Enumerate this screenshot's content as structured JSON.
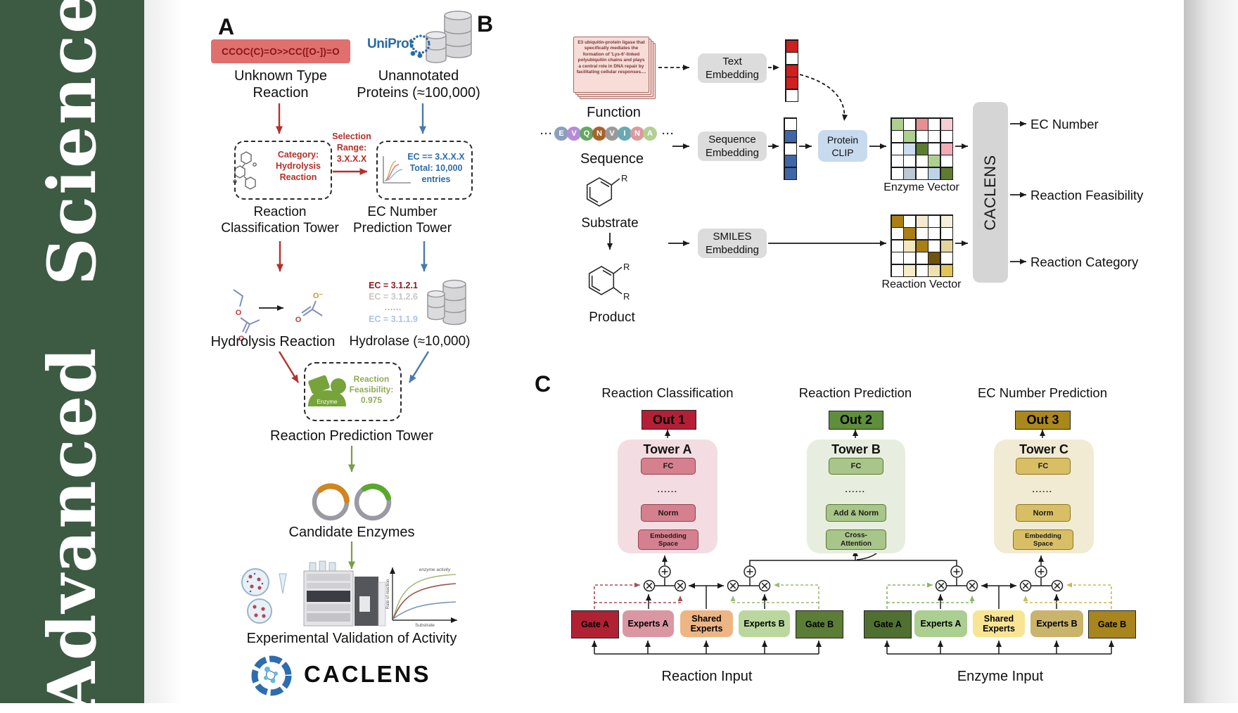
{
  "journal": {
    "title": "Advanced Science"
  },
  "colors": {
    "banner_green": "#3d5a43",
    "smiles_red": "#e0706d",
    "uniprot_blue": "#2a6aa4",
    "protein_clip_blue": "#c7daee",
    "tower_a_accent": "#b51f35",
    "tower_b_accent": "#5f8f3c",
    "tower_c_accent": "#ab881c"
  },
  "panelA": {
    "label": "A",
    "smiles": "CCOC(C)=O>>CC([O-])=O",
    "unknown_l1": "Unknown Type",
    "unknown_l2": "Reaction",
    "uniprot": "UniProt",
    "unannotated_l1": "Unannotated",
    "unannotated_l2": "Proteins (≈100,000)",
    "category_l1": "Category:",
    "category_l2": "Hydrolysis",
    "category_l3": "Reaction",
    "selection_l1": "Selection",
    "selection_l2": "Range:",
    "selection_l3": "3.X.X.X",
    "ecbox_l1": "EC == 3.X.X.X",
    "ecbox_l2": "Total: 10,000",
    "ecbox_l3": "entries",
    "tower1_l1": "Reaction",
    "tower1_l2": "Classification Tower",
    "tower2_l1": "EC Number",
    "tower2_l2": "Prediction Tower",
    "hydrolysis_label": "Hydrolysis Reaction",
    "ec_list": [
      "EC = 3.1.2.1",
      "EC = 3.1.2.6",
      "......",
      "EC = 3.1.1.9"
    ],
    "hydrolase_label": "Hydrolase (≈10,000)",
    "enzyme_badge": "Enzyme",
    "feas_l1": "Reaction",
    "feas_l2": "Feasibility:",
    "feas_l3": "0.975",
    "tower3_label": "Reaction Prediction Tower",
    "candidates_label": "Candidate Enzymes",
    "validation_label": "Experimental Validation of Activity",
    "brand": "CACLENS",
    "graph": {
      "annotation": "enzyme activity",
      "ylabel": "Rate of reaction",
      "xlabel": "Substrate"
    },
    "atoms": {
      "o": "O",
      "o_minus": "O⁻"
    }
  },
  "panelB": {
    "label": "B",
    "function_text": "E3 ubiquitin-protein ligase that specifically mediates the formation of 'Lys-6'-linked polyubiquitin chains and plays a central role in DNA repair by facilitating cellular responses....",
    "function_label": "Function",
    "seq_dots": "···",
    "sequence": [
      {
        "letter": "E",
        "color": "#8aa0bc"
      },
      {
        "letter": "V",
        "color": "#b48cd8"
      },
      {
        "letter": "Q",
        "color": "#62a862"
      },
      {
        "letter": "N",
        "color": "#a8622a"
      },
      {
        "letter": "V",
        "color": "#9a9a9a"
      },
      {
        "letter": "I",
        "color": "#6aa8b4"
      },
      {
        "letter": "N",
        "color": "#dc9aa0"
      },
      {
        "letter": "A",
        "color": "#b2cf96"
      }
    ],
    "sequence_label": "Sequence",
    "substrate_label": "Substrate",
    "product_label": "Product",
    "r_label": "R",
    "text_embedding_l1": "Text",
    "text_embedding_l2": "Embedding",
    "sequence_embedding_l1": "Sequence",
    "sequence_embedding_l2": "Embedding",
    "smiles_embedding_l1": "SMILES",
    "smiles_embedding_l2": "Embedding",
    "protein_clip_l1": "Protein",
    "protein_clip_l2": "CLIP",
    "text_vector": [
      "#d01f1f",
      "#ffffff",
      "#d01f1f",
      "#d01f1f",
      "#ffffff"
    ],
    "seq_vector": [
      "#ffffff",
      "#3f66a8",
      "#ffffff",
      "#3f66a8",
      "#3f66a8"
    ],
    "enzyme_grid": [
      [
        "#aed08e",
        "#ffffff",
        "#e89090",
        "#ffffff",
        "#f6cdd2"
      ],
      [
        "#ffffff",
        "#aed08e",
        "#ffffff",
        "#ffffff",
        "#ffffff"
      ],
      [
        "#ffffff",
        "#cddcee",
        "#5d7c31",
        "#ffffff",
        "#f2abb4"
      ],
      [
        "#ffffff",
        "#ffffff",
        "#ffffff",
        "#aed08e",
        "#ffffff"
      ],
      [
        "#ffffff",
        "#bcc8d2",
        "#ffffff",
        "#bed3ea",
        "#5d7c31"
      ]
    ],
    "reaction_grid": [
      [
        "#ab7f15",
        "#ffffff",
        "#f3ead0",
        "#ffffff",
        "#f7f0d8"
      ],
      [
        "#ffffff",
        "#ab7f15",
        "#ffffff",
        "#ffffff",
        "#ffffff"
      ],
      [
        "#ffffff",
        "#f3e7c0",
        "#ab7f15",
        "#ffffff",
        "#e3d49e"
      ],
      [
        "#ffffff",
        "#ffffff",
        "#ffffff",
        "#6f5410",
        "#ffffff"
      ],
      [
        "#ffffff",
        "#f5ecc8",
        "#ffffff",
        "#f0e2b0",
        "#e0c45a"
      ]
    ],
    "enzyme_vector_label": "Enzyme Vector",
    "reaction_vector_label": "Reaction Vector",
    "caclens_label": "CACLENS",
    "outputs": [
      "EC Number",
      "Reaction Feasibility",
      "Reaction Category"
    ]
  },
  "panelC": {
    "label": "C",
    "titles": [
      "Reaction Classification",
      "Reaction Prediction",
      "EC Number Prediction"
    ],
    "dots": "......",
    "towers": [
      {
        "out": "Out 1",
        "name": "Tower A",
        "fc": "FC",
        "mid": "Norm",
        "bottom_l1": "Embedding",
        "bottom_l2": "Space"
      },
      {
        "out": "Out 2",
        "name": "Tower B",
        "fc": "FC",
        "mid": "Add & Norm",
        "bottom_l1": "Cross-",
        "bottom_l2": "Attention"
      },
      {
        "out": "Out 3",
        "name": "Tower C",
        "fc": "FC",
        "mid": "Norm",
        "bottom_l1": "Embedding",
        "bottom_l2": "Space"
      }
    ],
    "reaction_moe": {
      "gate_a": "Gate A",
      "experts_a": "Experts A",
      "shared_l1": "Shared",
      "shared_l2": "Experts",
      "experts_b": "Experts B",
      "gate_b": "Gate B",
      "input": "Reaction Input"
    },
    "enzyme_moe": {
      "gate_a": "Gate A",
      "experts_a": "Experts A",
      "shared_l1": "Shared",
      "shared_l2": "Experts",
      "experts_b": "Experts B",
      "gate_b": "Gate B",
      "input": "Enzyme Input"
    }
  }
}
